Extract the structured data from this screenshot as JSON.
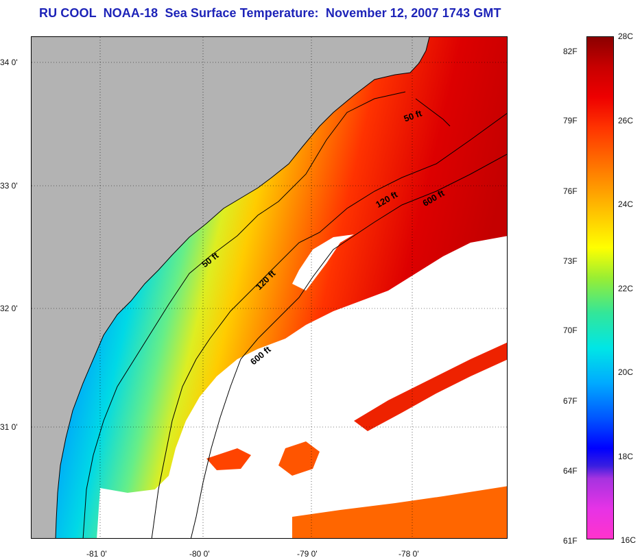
{
  "title": "RU COOL  NOAA-18  Sea Surface Temperature:  November 12, 2007 1743 GMT",
  "map": {
    "lon_labels": [
      "-81 0'",
      "-80 0'",
      "-79 0'",
      "-78 0'"
    ],
    "lat_labels": [
      "34 0'",
      "33 0'",
      "32 0'",
      "31 0'"
    ],
    "contours": [
      {
        "label": "50 ft",
        "depth_ft": 50
      },
      {
        "label": "50 ft",
        "depth_ft": 50
      },
      {
        "label": "120 ft",
        "depth_ft": 120
      },
      {
        "label": "120 ft",
        "depth_ft": 120
      },
      {
        "label": "600 ft",
        "depth_ft": 600
      },
      {
        "label": "600 ft",
        "depth_ft": 600
      }
    ],
    "land_color": "#b3b3b3",
    "cloud_color": "#ffffff"
  },
  "colorbar": {
    "fahrenheit_labels": [
      "82F",
      "79F",
      "76F",
      "73F",
      "70F",
      "67F",
      "64F",
      "61F"
    ],
    "celsius_labels": [
      "28C",
      "26C",
      "24C",
      "22C",
      "20C",
      "18C",
      "16C"
    ],
    "min_c": 16,
    "max_c": 28
  }
}
